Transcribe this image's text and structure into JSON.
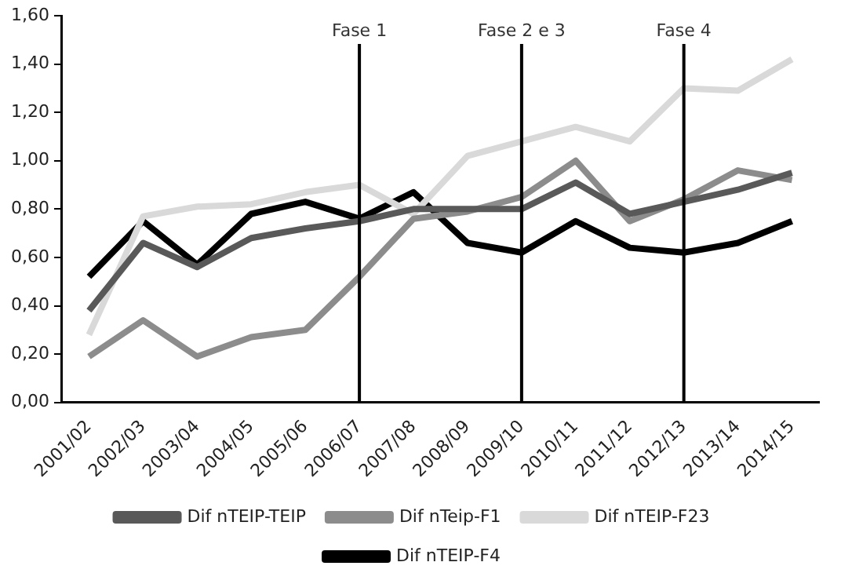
{
  "chart_data": {
    "type": "line",
    "categories": [
      "2001/02",
      "2002/03",
      "2003/04",
      "2004/05",
      "2005/06",
      "2006/07",
      "2007/08",
      "2008/09",
      "2009/10",
      "2010/11",
      "2011/12",
      "2012/13",
      "2013/14",
      "2014/15"
    ],
    "series": [
      {
        "name": "Dif nTEIP-TEIP",
        "color": "#595959",
        "values": [
          0.38,
          0.66,
          0.56,
          0.68,
          0.72,
          0.75,
          0.8,
          0.8,
          0.8,
          0.91,
          0.78,
          0.83,
          0.88,
          0.95
        ]
      },
      {
        "name": "Dif nTeip-F1",
        "color": "#8c8c8c",
        "values": [
          0.19,
          0.34,
          0.19,
          0.27,
          0.3,
          0.52,
          0.76,
          0.79,
          0.85,
          1.0,
          0.75,
          0.84,
          0.96,
          0.92
        ]
      },
      {
        "name": "Dif nTEIP-F23",
        "color": "#d9d9d9",
        "values": [
          0.28,
          0.77,
          0.81,
          0.82,
          0.87,
          0.9,
          0.78,
          1.02,
          1.08,
          1.14,
          1.08,
          1.3,
          1.29,
          1.42
        ]
      },
      {
        "name": "Dif nTEIP-F4",
        "color": "#000000",
        "values": [
          0.52,
          0.75,
          0.57,
          0.78,
          0.83,
          0.76,
          0.87,
          0.66,
          0.62,
          0.75,
          0.64,
          0.62,
          0.66,
          0.75
        ]
      }
    ],
    "ylim": [
      0,
      1.6
    ],
    "yticks": [
      {
        "value": 0,
        "label": "0,00"
      },
      {
        "value": 0.2,
        "label": "0,20"
      },
      {
        "value": 0.4,
        "label": "0,40"
      },
      {
        "value": 0.6,
        "label": "0,60"
      },
      {
        "value": 0.8,
        "label": "0,80"
      },
      {
        "value": 1.0,
        "label": "1,00"
      },
      {
        "value": 1.2,
        "label": "1,20"
      },
      {
        "value": 1.4,
        "label": "1,40"
      },
      {
        "value": 1.6,
        "label": "1,60"
      }
    ],
    "ref_lines": [
      {
        "axis": "x",
        "value": "2006/07",
        "label": "Fase 1",
        "color": "#000000"
      },
      {
        "axis": "x",
        "value": "2009/10",
        "label": "Fase 2 e 3",
        "color": "#000000"
      },
      {
        "axis": "x",
        "value": "2012/13",
        "label": "Fase 4",
        "color": "#000000"
      }
    ],
    "grid": false,
    "legend": "bottom",
    "marker": "none",
    "line_style": "solid"
  }
}
